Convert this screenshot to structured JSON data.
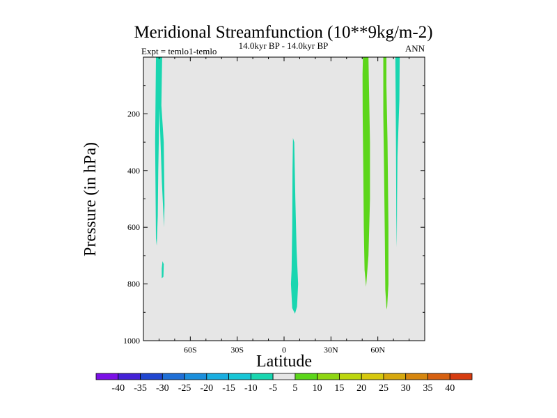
{
  "chart_data": {
    "type": "filled-contour",
    "title": "Meridional Streamfunction (10**9kg/m-2)",
    "subtitle": "14.0kyr BP - 14.0kyr BP",
    "left_label": "Expt = temlo1-temlo",
    "right_label": "ANN",
    "xlabel": "Latitude",
    "ylabel": "Pressure (in hPa)",
    "xlim": [
      -90,
      90
    ],
    "ylim": [
      1000,
      0
    ],
    "x_ticks": [
      {
        "value": -60,
        "label": "60S"
      },
      {
        "value": -30,
        "label": "30S"
      },
      {
        "value": 0,
        "label": "0"
      },
      {
        "value": 30,
        "label": "30N"
      },
      {
        "value": 60,
        "label": "60N"
      }
    ],
    "y_ticks": [
      {
        "value": 200,
        "label": "200"
      },
      {
        "value": 400,
        "label": "400"
      },
      {
        "value": 600,
        "label": "600"
      },
      {
        "value": 800,
        "label": "800"
      },
      {
        "value": 1000,
        "label": "1000"
      }
    ],
    "background_color": "#e6e6e6",
    "colorbar": {
      "labels": [
        "-40",
        "-35",
        "-30",
        "-25",
        "-20",
        "-15",
        "-10",
        "-5",
        "5",
        "10",
        "15",
        "20",
        "25",
        "30",
        "35",
        "40"
      ],
      "colors": [
        "#7b10e6",
        "#4422d6",
        "#2046d0",
        "#1f6fd6",
        "#1b8fdc",
        "#1aaee0",
        "#18c6d6",
        "#19d6b0",
        "#e6e6e6",
        "#5cd61a",
        "#8ed612",
        "#bcd60e",
        "#d6c80e",
        "#d6a80e",
        "#d6860e",
        "#d66010",
        "#d63c10"
      ]
    },
    "regions": [
      {
        "name": "cyan-band-south-upper",
        "level": "-10 to -5",
        "color": "#19d6b0",
        "polygon": [
          [
            -82,
            0
          ],
          [
            -78,
            0
          ],
          [
            -78.5,
            170
          ],
          [
            -77,
            300
          ],
          [
            -76.5,
            520
          ],
          [
            -76.8,
            600
          ],
          [
            -78.2,
            440
          ],
          [
            -79,
            310
          ],
          [
            -79.8,
            180
          ],
          [
            -80.5,
            400
          ],
          [
            -80.8,
            560
          ],
          [
            -81.5,
            665
          ],
          [
            -82,
            640
          ],
          [
            -82.5,
            300
          ]
        ]
      },
      {
        "name": "cyan-blob-south-lower",
        "level": "-10 to -5",
        "color": "#19d6b0",
        "polygon": [
          [
            -77.8,
            720
          ],
          [
            -77,
            730
          ],
          [
            -77.2,
            775
          ],
          [
            -78.3,
            780
          ],
          [
            -78.3,
            745
          ]
        ]
      },
      {
        "name": "cyan-band-equator",
        "level": "-10 to -5",
        "color": "#19d6b0",
        "polygon": [
          [
            5.7,
            285
          ],
          [
            6.5,
            300
          ],
          [
            7.2,
            500
          ],
          [
            8,
            680
          ],
          [
            9,
            800
          ],
          [
            8.3,
            880
          ],
          [
            7,
            905
          ],
          [
            5.2,
            885
          ],
          [
            4.4,
            800
          ],
          [
            4.8,
            750
          ],
          [
            5.2,
            600
          ],
          [
            5.4,
            400
          ]
        ]
      },
      {
        "name": "green-band-north-1",
        "level": "5 to 10",
        "color": "#5cd61a",
        "polygon": [
          [
            50.5,
            0
          ],
          [
            54,
            0
          ],
          [
            54.3,
            100
          ],
          [
            55,
            300
          ],
          [
            55,
            500
          ],
          [
            54,
            700
          ],
          [
            52.5,
            810
          ],
          [
            51.5,
            750
          ],
          [
            51,
            600
          ],
          [
            50.7,
            400
          ],
          [
            50.3,
            200
          ],
          [
            50.2,
            60
          ]
        ]
      },
      {
        "name": "green-band-north-2",
        "level": "5 to 10",
        "color": "#5cd61a",
        "polygon": [
          [
            63.5,
            0
          ],
          [
            65.5,
            0
          ],
          [
            65.5,
            100
          ],
          [
            66.2,
            300
          ],
          [
            66.8,
            600
          ],
          [
            66.8,
            800
          ],
          [
            66,
            880
          ],
          [
            65.6,
            890
          ],
          [
            64.8,
            820
          ],
          [
            64.5,
            650
          ],
          [
            64,
            400
          ],
          [
            63.5,
            200
          ]
        ]
      },
      {
        "name": "cyan-band-north",
        "level": "-10 to -5",
        "color": "#19d6b0",
        "polygon": [
          [
            71.2,
            0
          ],
          [
            74,
            0
          ],
          [
            73.8,
            150
          ],
          [
            72.6,
            350
          ],
          [
            72.3,
            500
          ],
          [
            72.2,
            640
          ],
          [
            72.1,
            670
          ],
          [
            71.8,
            560
          ],
          [
            71.6,
            300
          ],
          [
            71.4,
            150
          ]
        ]
      }
    ]
  }
}
